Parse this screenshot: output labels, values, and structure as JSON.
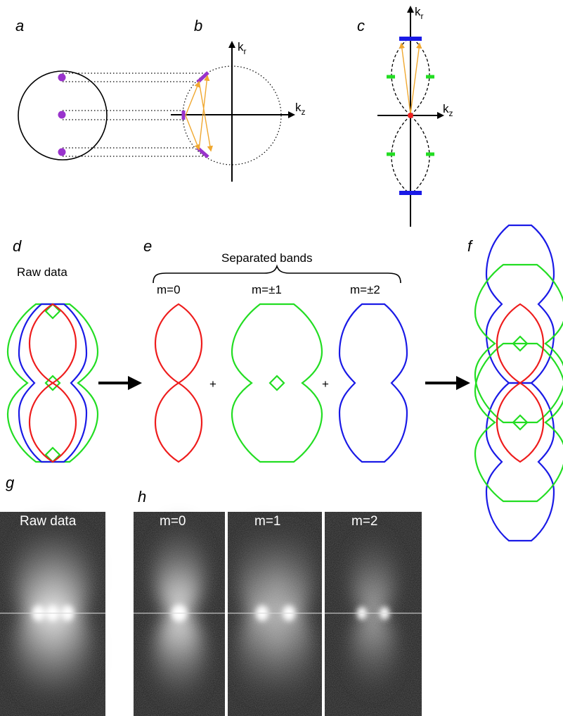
{
  "panels": {
    "a": "a",
    "b": "b",
    "c": "c",
    "d": "d",
    "e": "e",
    "f": "f",
    "g": "g",
    "h": "h"
  },
  "axes": {
    "kr_main": "k",
    "kr_sub": "r",
    "kz_main": "k",
    "kz_sub": "z"
  },
  "d": {
    "title": "Raw data"
  },
  "e": {
    "title": "Separated bands",
    "bands": [
      "m=0",
      "m=±1",
      "m=±2"
    ],
    "plus": "+"
  },
  "g": {
    "title": "Raw data"
  },
  "h": {
    "titles": [
      "m=0",
      "m=1",
      "m=2"
    ]
  },
  "colors": {
    "m0": "#ee1c1c",
    "m1": "#22dd22",
    "m2": "#1a1ae6",
    "dot": "#9933cc",
    "arrow": "#f0a830",
    "origin": "#ee2222"
  }
}
